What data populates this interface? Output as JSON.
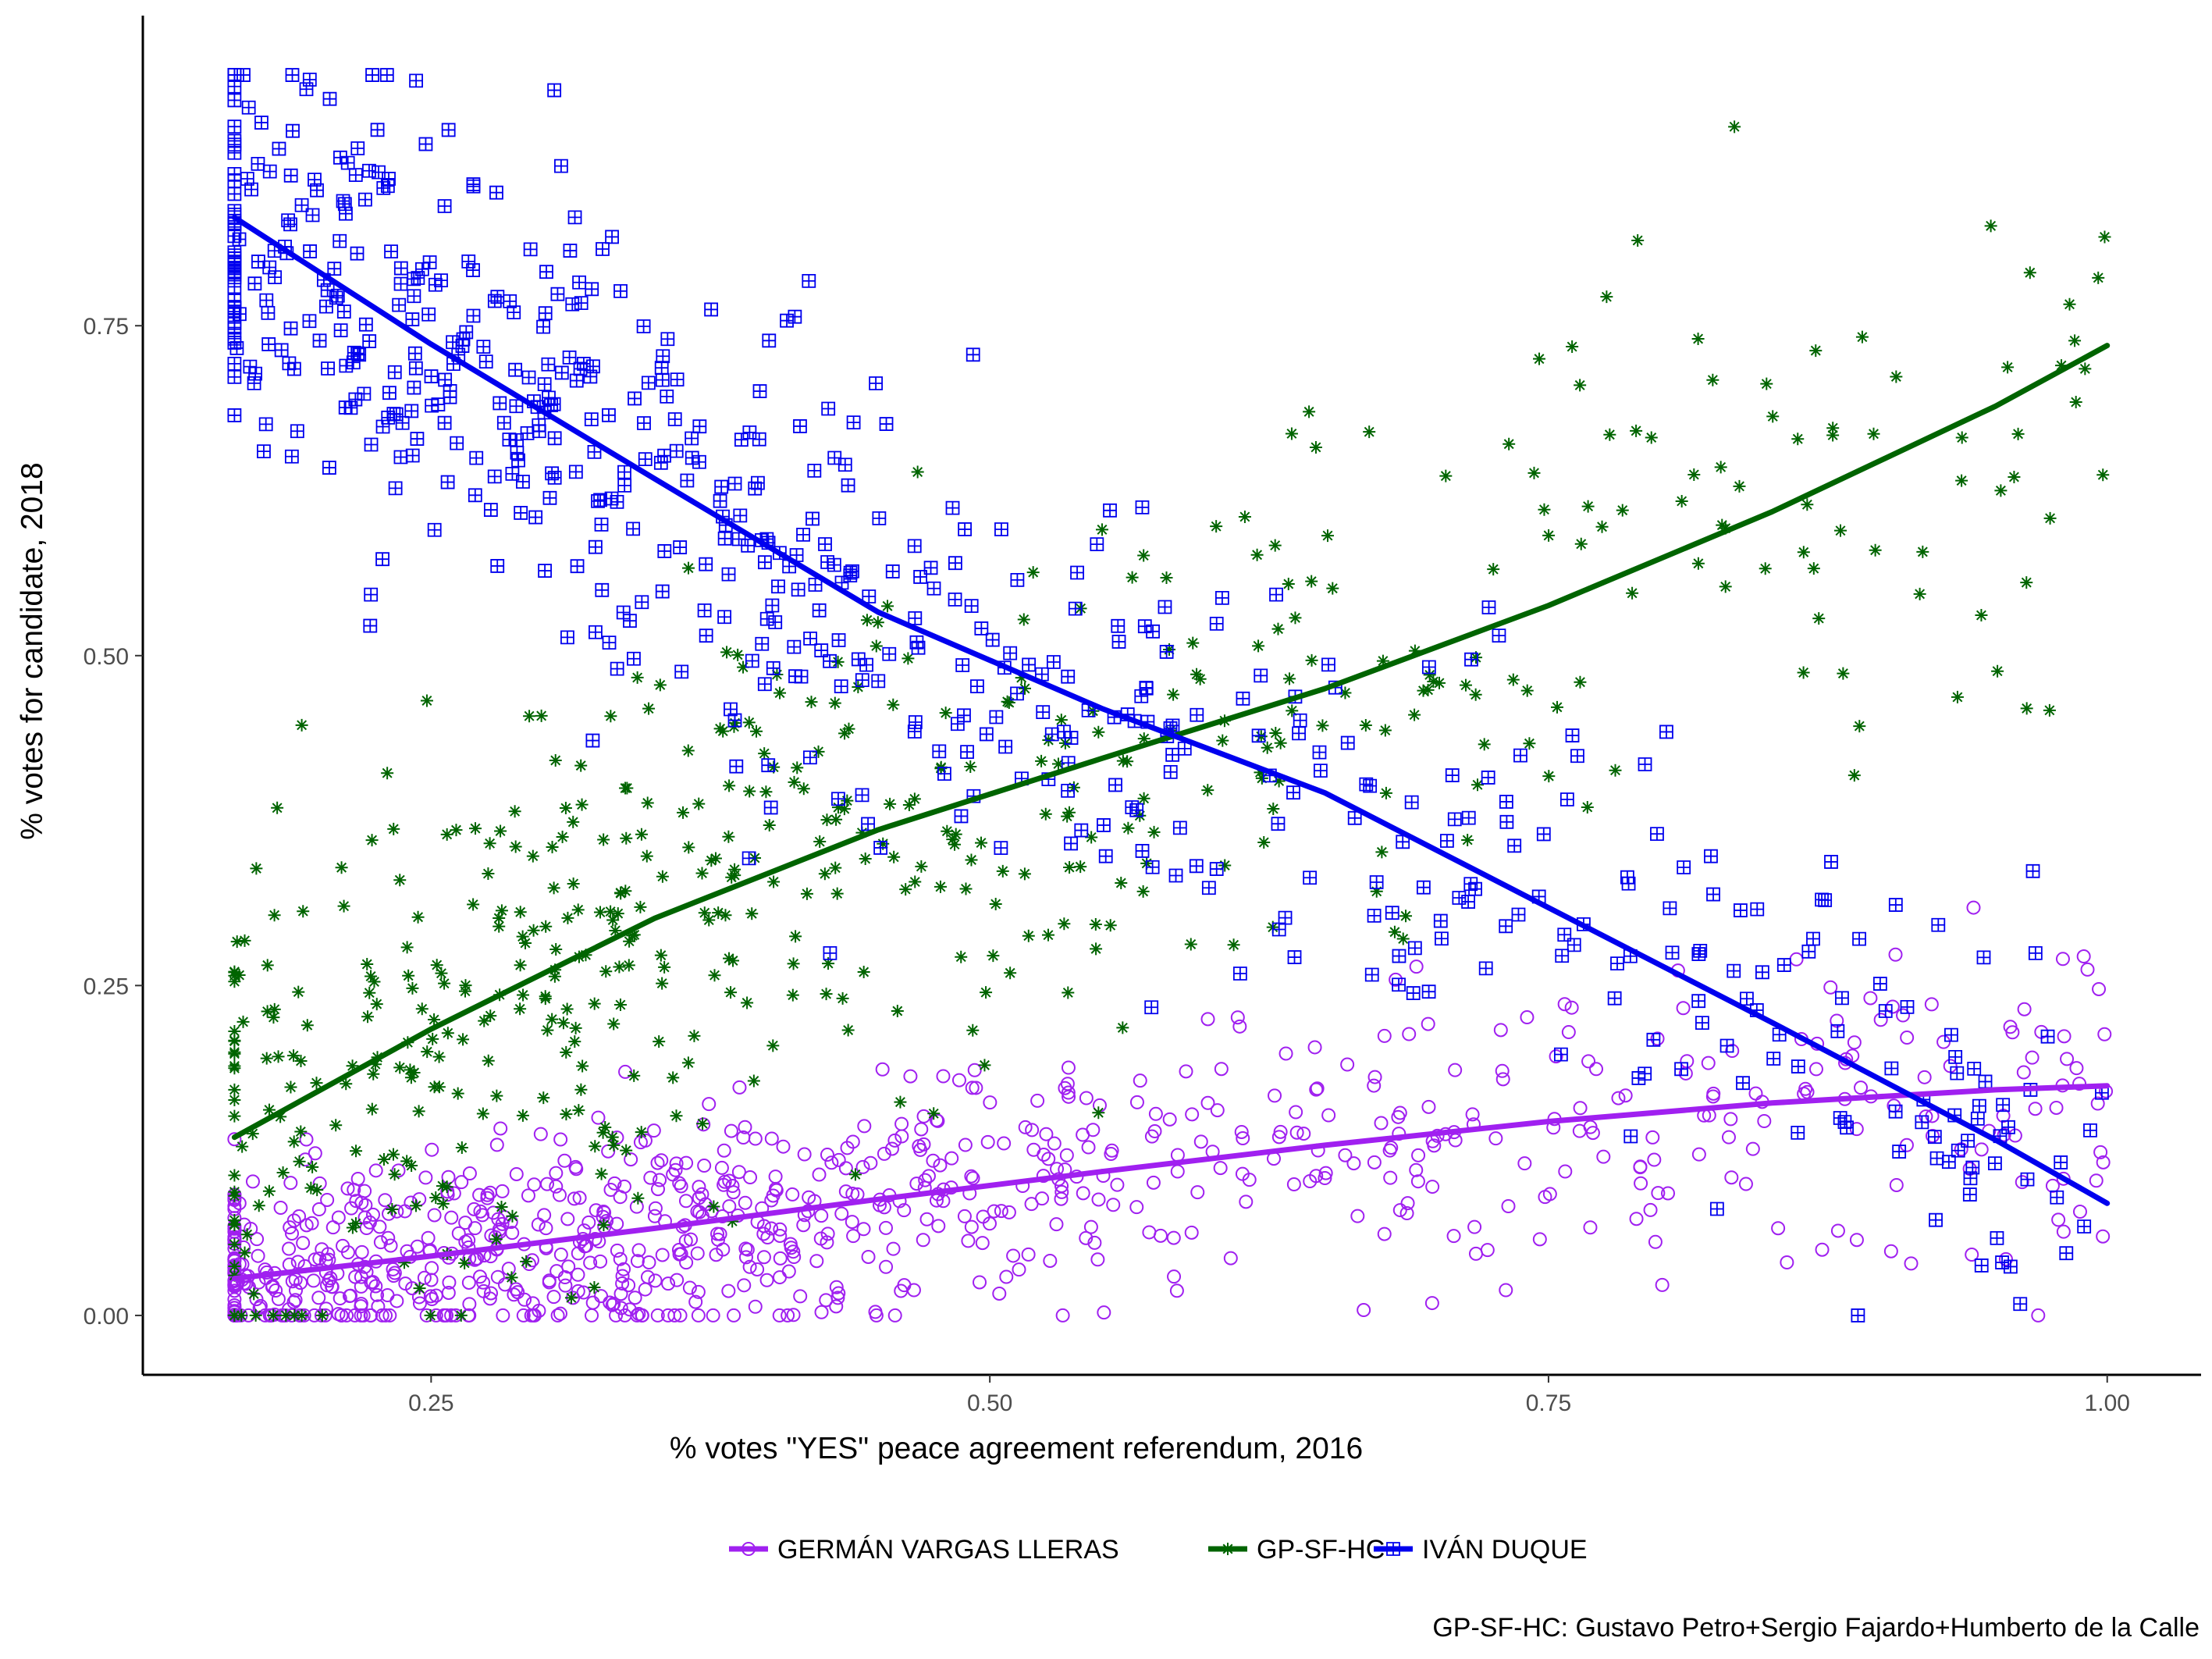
{
  "chart_data": {
    "type": "scatter",
    "title": "",
    "xlabel": "% votes \"YES\" peace agreement referendum, 2016",
    "ylabel": "% votes for candidate, 2018",
    "caption": "GP-SF-HC: Gustavo Petro+Sergio Fajardo+Humberto de la Calle",
    "xlim": [
      0.121,
      1.042
    ],
    "ylim": [
      -0.045,
      0.985
    ],
    "x_ticks": [
      0.25,
      0.5,
      0.75,
      1.0
    ],
    "x_tick_labels": [
      "0.25",
      "0.50",
      "0.75",
      "1.00"
    ],
    "y_ticks": [
      0.0,
      0.25,
      0.5,
      0.75
    ],
    "y_tick_labels": [
      "0.00",
      "0.25",
      "0.50",
      "0.75"
    ],
    "grid": false,
    "legend_position": "bottom",
    "series": [
      {
        "name": "GERMÁN VARGAS LLERAS",
        "color": "#a020f0",
        "marker": "circle-open",
        "fit_line": {
          "x": [
            0.162,
            0.25,
            0.35,
            0.45,
            0.55,
            0.65,
            0.75,
            0.85,
            0.95,
            1.0
          ],
          "y": [
            0.028,
            0.045,
            0.066,
            0.088,
            0.109,
            0.129,
            0.147,
            0.161,
            0.171,
            0.174
          ]
        },
        "generator": {
          "n": 900,
          "x_range": [
            0.162,
            1.0
          ],
          "noise_sd": 0.04,
          "spread_growth": 1.6
        }
      },
      {
        "name": "GP-SF-HC",
        "color": "#006400",
        "marker": "asterisk",
        "fit_line": {
          "x": [
            0.162,
            0.25,
            0.35,
            0.45,
            0.55,
            0.65,
            0.75,
            0.85,
            0.95,
            1.0
          ],
          "y": [
            0.135,
            0.217,
            0.301,
            0.368,
            0.422,
            0.475,
            0.538,
            0.609,
            0.689,
            0.735
          ]
        },
        "generator": {
          "n": 560,
          "x_range": [
            0.162,
            1.0
          ],
          "noise_sd": 0.1,
          "spread_growth": 1.2
        }
      },
      {
        "name": "IVÁN DUQUE",
        "color": "#0000ee",
        "marker": "square-plus",
        "fit_line": {
          "x": [
            0.162,
            0.25,
            0.35,
            0.45,
            0.55,
            0.65,
            0.75,
            0.85,
            0.95,
            1.0
          ],
          "y": [
            0.832,
            0.736,
            0.634,
            0.533,
            0.46,
            0.396,
            0.309,
            0.222,
            0.133,
            0.085
          ]
        },
        "generator": {
          "n": 640,
          "x_range": [
            0.162,
            1.0
          ],
          "noise_sd": 0.085,
          "spread_growth": 1.0
        }
      }
    ]
  }
}
